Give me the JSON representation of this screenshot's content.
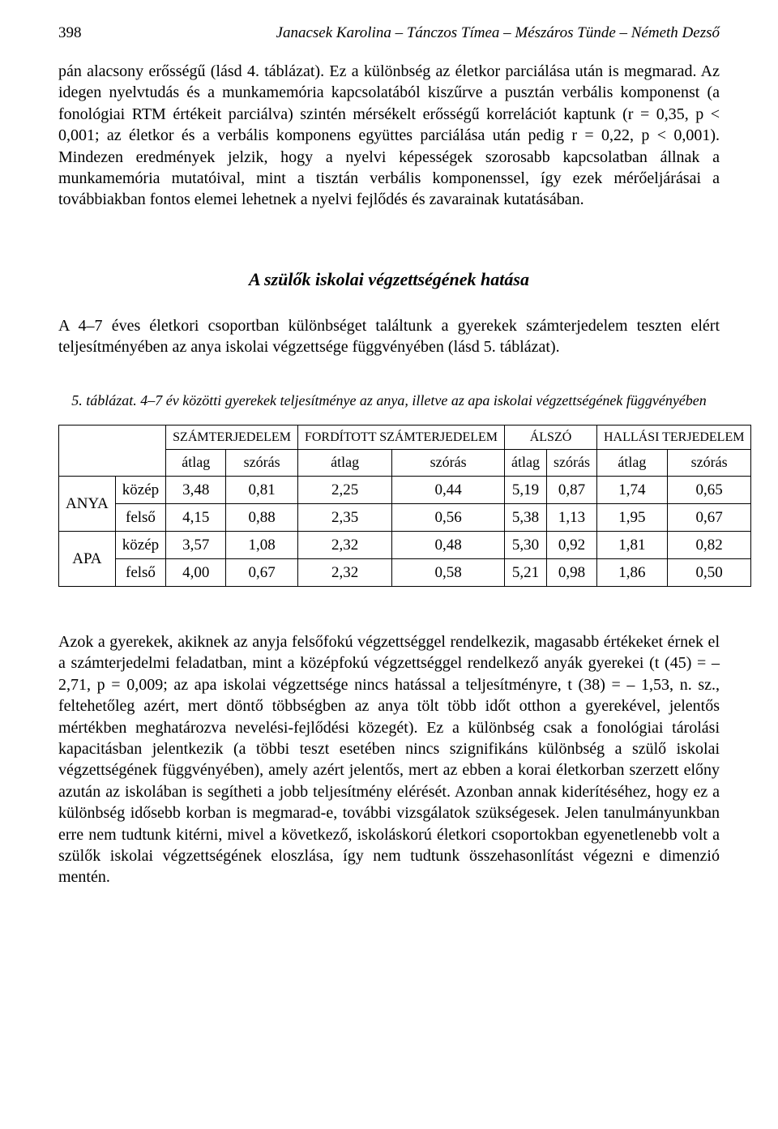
{
  "header": {
    "page_number": "398",
    "running_title": "Janacsek Karolina – Tánczos Tímea – Mészáros Tünde – Németh Dezső"
  },
  "body": {
    "para1": "pán alacsony erősségű (lásd 4. táblázat). Ez a különbség az életkor parciálása után is megmarad. Az idegen nyelvtudás és a munkamemória kapcsolatából kiszűrve a pusztán verbális komponenst (a fonológiai RTM értékeit parciálva) szintén mérsékelt erősségű korrelációt kaptunk (r = 0,35, p < 0,001; az életkor és a verbális komponens együttes parciálása után pedig r = 0,22, p < 0,001). Mindezen eredmények jelzik, hogy a nyelvi képességek szorosabb kapcsolatban állnak a munkamemória mutatóival, mint a tisztán verbális komponenssel, így ezek mérőeljárásai a továbbiakban fontos elemei lehetnek a nyelvi fejlődés és zavarainak kutatásában.",
    "section_title": "A szülők iskolai végzettségének hatása",
    "para2": "A 4–7 éves életkori csoportban különbséget találtunk a gyerekek számterjedelem teszten elért teljesítményében az anya iskolai végzettsége függvényében (lásd 5. táblázat).",
    "table_caption": "5. táblázat. 4–7 év közötti gyerekek teljesítménye az anya, illetve az apa iskolai végzettségének függvényében",
    "para3": "Azok a gyerekek, akiknek az anyja felsőfokú végzettséggel rendelkezik, magasabb értékeket érnek el a számterjedelmi feladatban, mint a középfokú végzettséggel rendelkező anyák gyerekei (t (45) = – 2,71, p = 0,009; az apa iskolai végzettsége nincs hatással a teljesítményre, t (38) = – 1,53, n. sz., feltehetőleg azért, mert döntő többségben az anya tölt több időt otthon a gyerekével, jelentős mértékben meghatározva nevelési-fejlődési közegét). Ez a különbség csak a fonológiai tárolási kapacitásban jelentkezik (a többi teszt esetében nincs szignifikáns különbség a szülő iskolai végzettségének függvényében), amely azért jelentős, mert az ebben a korai életkorban szerzett előny azután az iskolában is segítheti a jobb teljesítmény elérését. Azonban annak kiderítéséhez, hogy ez a különbség idősebb korban is megmarad-e, további vizsgálatok szükségesek. Jelen tanulmányunkban erre nem tudtunk kitérni, mivel a következő, iskoláskorú életkori csoportokban egyenetlenebb volt a szülők iskolai végzettségének eloszlása, így nem tudtunk összehasonlítást végezni e dimenzió mentén."
  },
  "table": {
    "col_groups": [
      "SZÁMTERJEDELEM",
      "FORDÍTOTT SZÁMTERJEDELEM",
      "ÁLSZÓ",
      "HALLÁSI TERJEDELEM"
    ],
    "sub_cols": [
      "átlag",
      "szórás"
    ],
    "row_groups": [
      {
        "label": "ANYA",
        "rows": [
          {
            "label": "közép",
            "cells": [
              "3,48",
              "0,81",
              "2,25",
              "0,44",
              "5,19",
              "0,87",
              "1,74",
              "0,65"
            ],
            "bold": true
          },
          {
            "label": "felső",
            "cells": [
              "4,15",
              "0,88",
              "2,35",
              "0,56",
              "5,38",
              "1,13",
              "1,95",
              "0,67"
            ],
            "bold": true
          }
        ]
      },
      {
        "label": "APA",
        "rows": [
          {
            "label": "közép",
            "cells": [
              "3,57",
              "1,08",
              "2,32",
              "0,48",
              "5,30",
              "0,92",
              "1,81",
              "0,82"
            ],
            "bold": false
          },
          {
            "label": "felső",
            "cells": [
              "4,00",
              "0,67",
              "2,32",
              "0,58",
              "5,21",
              "0,98",
              "1,86",
              "0,50"
            ],
            "bold": false
          }
        ]
      }
    ]
  }
}
